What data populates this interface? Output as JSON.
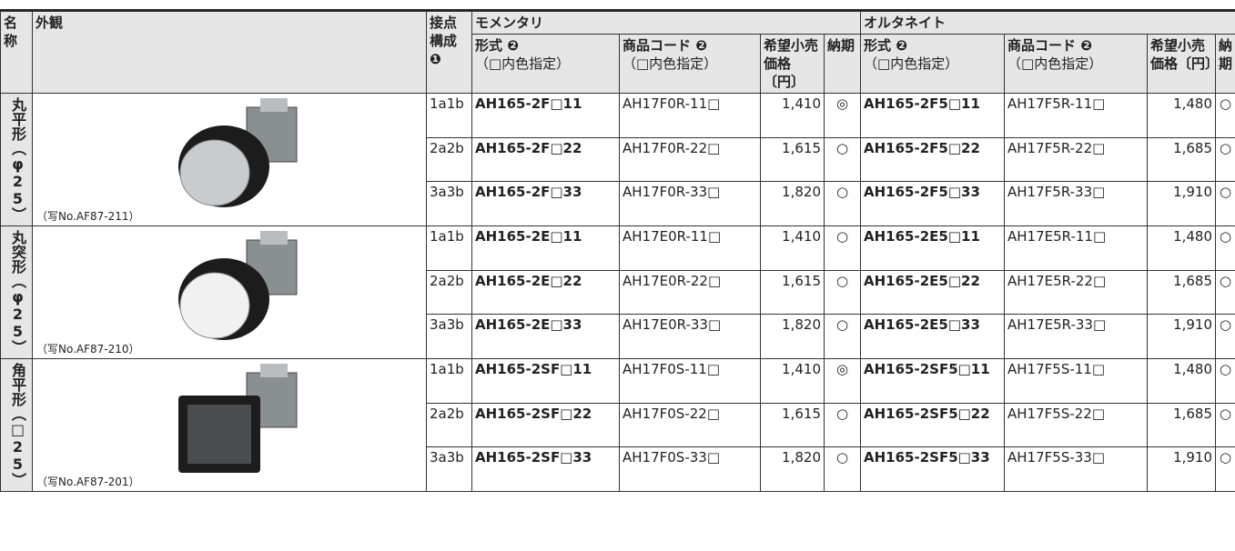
{
  "header": {
    "name": "名称",
    "appearance": "外観",
    "contact": "接点構成",
    "contact_note": "❶",
    "momentary": "モメンタリ",
    "alternate": "オルタネイト",
    "momentary_cols": [
      {
        "label": "形式 ❷",
        "note": "（□内色指定）"
      },
      {
        "label": "商品コード ❷",
        "note": "（□内色指定）"
      },
      {
        "label": "希望小売価格〔円〕"
      },
      {
        "label": "納期"
      }
    ],
    "alternate_cols": [
      {
        "label": "形式 ❷",
        "note": "（□内色指定）"
      },
      {
        "label": "商品コード ❷",
        "note": "（□内色指定）"
      },
      {
        "label": "希望小売価格〔円〕"
      },
      {
        "label": "納期"
      }
    ]
  },
  "groups": [
    {
      "name": "丸平形（φ25）",
      "photo": "（写No.AF87-211）",
      "rows": [
        [
          "1a1b",
          "AH165-2F□11",
          "AH17F0R-11□",
          "1,410",
          "◎",
          "AH165-2F5□11",
          "AH17F5R-11□",
          "1,480",
          "○"
        ],
        [
          "2a2b",
          "AH165-2F□22",
          "AH17F0R-22□",
          "1,615",
          "○",
          "AH165-2F5□22",
          "AH17F5R-22□",
          "1,685",
          "○"
        ],
        [
          "3a3b",
          "AH165-2F□33",
          "AH17F0R-33□",
          "1,820",
          "○",
          "AH165-2F5□33",
          "AH17F5R-33□",
          "1,910",
          "○"
        ]
      ]
    },
    {
      "name": "丸突形（φ25）",
      "photo": "（写No.AF87-210）",
      "rows": [
        [
          "1a1b",
          "AH165-2E□11",
          "AH17E0R-11□",
          "1,410",
          "○",
          "AH165-2E5□11",
          "AH17E5R-11□",
          "1,480",
          "○"
        ],
        [
          "2a2b",
          "AH165-2E□22",
          "AH17E0R-22□",
          "1,615",
          "○",
          "AH165-2E5□22",
          "AH17E5R-22□",
          "1,685",
          "○"
        ],
        [
          "3a3b",
          "AH165-2E□33",
          "AH17E0R-33□",
          "1,820",
          "○",
          "AH165-2E5□33",
          "AH17E5R-33□",
          "1,910",
          "○"
        ]
      ]
    },
    {
      "name": "角平形（□25）",
      "photo": "（写No.AF87-201）",
      "rows": [
        [
          "1a1b",
          "AH165-2SF□11",
          "AH17F0S-11□",
          "1,410",
          "◎",
          "AH165-2SF5□11",
          "AH17F5S-11□",
          "1,480",
          "○"
        ],
        [
          "2a2b",
          "AH165-2SF□22",
          "AH17F0S-22□",
          "1,615",
          "○",
          "AH165-2SF5□22",
          "AH17F5S-22□",
          "1,685",
          "○"
        ],
        [
          "3a3b",
          "AH165-2SF□33",
          "AH17F0S-33□",
          "1,820",
          "○",
          "AH165-2SF5□33",
          "AH17F5S-33□",
          "1,910",
          "○"
        ]
      ]
    }
  ]
}
